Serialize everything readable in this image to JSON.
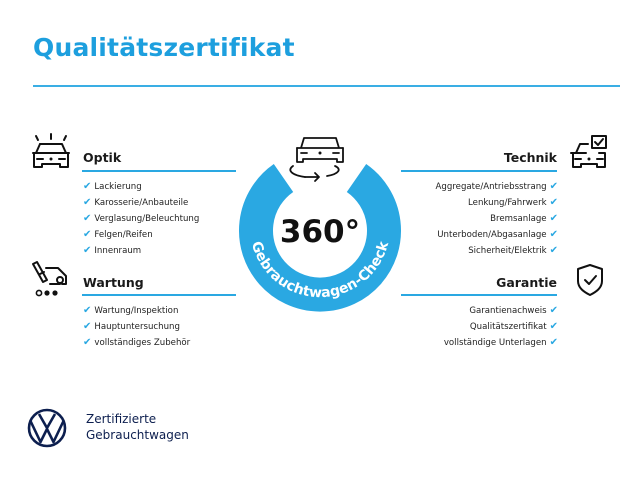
{
  "title": "Qualitätszertifikat",
  "colors": {
    "accent": "#2aa8e2",
    "title": "#1d9fde",
    "brand_navy": "#0d1f4f"
  },
  "badge": {
    "value": "360°",
    "ring_text": "Gebrauchtwagen-Check",
    "icon": "car-rotate-icon"
  },
  "sections": {
    "optik": {
      "heading": "Optik",
      "icon": "car-lights-icon",
      "items": [
        "Lackierung",
        "Karosserie/Anbauteile",
        "Verglasung/Beleuchtung",
        "Felgen/Reifen",
        "Innenraum"
      ]
    },
    "wartung": {
      "heading": "Wartung",
      "icon": "service-van-icon",
      "items": [
        "Wartung/Inspektion",
        "Hauptuntersuchung",
        "vollständiges Zubehör"
      ]
    },
    "technik": {
      "heading": "Technik",
      "icon": "car-checklist-icon",
      "items": [
        "Aggregate/Antriebsstrang",
        "Lenkung/Fahrwerk",
        "Bremsanlage",
        "Unterboden/Abgasanlage",
        "Sicherheit/Elektrik"
      ]
    },
    "garantie": {
      "heading": "Garantie",
      "icon": "shield-check-icon",
      "items": [
        "Garantienachweis",
        "Qualitätszertifikat",
        "vollständige Unterlagen"
      ]
    }
  },
  "check_glyph": "✔",
  "footer": {
    "line1": "Zertifizierte",
    "line2": "Gebrauchtwagen",
    "logo": "vw-logo"
  }
}
